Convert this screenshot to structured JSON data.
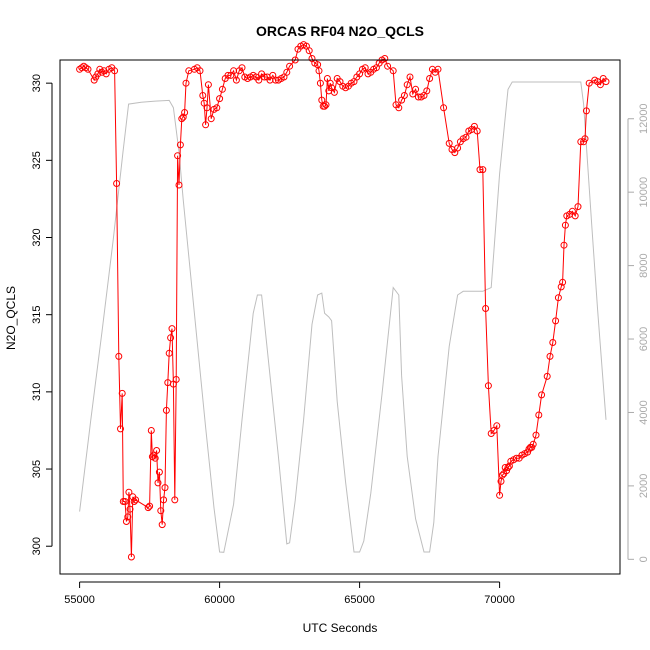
{
  "chart_data": {
    "type": "line",
    "title": "ORCAS RF04 N2O_QCLS",
    "xlabel": "UTC Seconds",
    "ylabel": "N2O_QCLS",
    "xlim": [
      54300,
      74300
    ],
    "ylim": [
      298.2,
      331.5
    ],
    "y2lim": [
      -400,
      13600
    ],
    "xticks": [
      55000,
      60000,
      65000,
      70000
    ],
    "yticks": [
      300,
      305,
      310,
      315,
      320,
      325,
      330
    ],
    "y2ticks": [
      0,
      2000,
      4000,
      6000,
      8000,
      10000,
      12000
    ],
    "x_tick_labels": [
      "55000",
      "60000",
      "65000",
      "70000"
    ],
    "y_tick_labels": [
      "300",
      "305",
      "310",
      "315",
      "320",
      "325",
      "330"
    ],
    "y2_tick_labels": [
      "0",
      "2000",
      "4000",
      "6000",
      "8000",
      "10000",
      "12000"
    ],
    "grid": false,
    "colors": {
      "n2o": "#ff0000",
      "altitude": "#bebebe",
      "axis": "#000000",
      "right_axis": "#aaaaaa"
    },
    "series": [
      {
        "axis": "left",
        "style": "line+open-circles",
        "color": "#ff0000",
        "x": [
          55000,
          55080,
          55150,
          55220,
          55300,
          55520,
          55580,
          55650,
          55720,
          55800,
          55870,
          55950,
          56050,
          56150,
          56250,
          56320,
          56400,
          56460,
          56520,
          56560,
          56620,
          56670,
          56720,
          56760,
          56800,
          56850,
          56900,
          56950,
          57000,
          57450,
          57500,
          57560,
          57600,
          57650,
          57700,
          57750,
          57800,
          57850,
          57900,
          57950,
          58000,
          58050,
          58100,
          58150,
          58200,
          58250,
          58300,
          58350,
          58400,
          58450,
          58500,
          58550,
          58600,
          58650,
          58700,
          58750,
          58800,
          58900,
          59100,
          59200,
          59300,
          59400,
          59450,
          59500,
          59550,
          59600,
          59700,
          59800,
          59900,
          60000,
          60100,
          60200,
          60300,
          60400,
          60500,
          60600,
          60700,
          60800,
          60900,
          61000,
          61100,
          61200,
          61300,
          61400,
          61500,
          61600,
          61700,
          61800,
          61900,
          62000,
          62100,
          62200,
          62300,
          62400,
          62500,
          62700,
          62800,
          62900,
          63000,
          63100,
          63200,
          63300,
          63400,
          63500,
          63550,
          63600,
          63650,
          63700,
          63750,
          63800,
          63850,
          63900,
          63950,
          64000,
          64100,
          64200,
          64300,
          64400,
          64500,
          64600,
          64700,
          64800,
          64900,
          65000,
          65100,
          65200,
          65300,
          65400,
          65500,
          65600,
          65700,
          65800,
          65900,
          66000,
          66200,
          66300,
          66400,
          66500,
          66600,
          66700,
          66800,
          66900,
          67000,
          67100,
          67200,
          67300,
          67400,
          67500,
          67600,
          67700,
          67800,
          68000,
          68200,
          68300,
          68400,
          68500,
          68600,
          68700,
          68800,
          68900,
          69000,
          69100,
          69200,
          69300,
          69400,
          69500,
          69600,
          69700,
          69800,
          69900,
          70000,
          70050,
          70100,
          70150,
          70200,
          70250,
          70300,
          70350,
          70400,
          70500,
          70600,
          70700,
          70800,
          70900,
          71000,
          71050,
          71100,
          71150,
          71200,
          71300,
          71400,
          71500,
          71700,
          71800,
          71900,
          72000,
          72100,
          72200,
          72250,
          72300,
          72350,
          72400,
          72500,
          72600,
          72700,
          72800,
          72900,
          73000,
          73050,
          73100,
          73200,
          73400,
          73500,
          73600,
          73700,
          73800
        ],
        "y": [
          330.9,
          331.0,
          331.1,
          331.0,
          330.9,
          330.2,
          330.4,
          330.6,
          330.9,
          330.7,
          330.8,
          330.6,
          330.9,
          331.0,
          330.8,
          323.5,
          312.3,
          307.6,
          309.9,
          302.9,
          302.9,
          301.6,
          301.9,
          303.5,
          302.4,
          299.3,
          303.2,
          302.9,
          303.0,
          302.5,
          302.6,
          307.5,
          305.8,
          305.9,
          305.7,
          306.2,
          304.1,
          304.8,
          302.3,
          301.4,
          303.0,
          303.8,
          308.8,
          310.6,
          312.5,
          313.5,
          314.1,
          310.5,
          303.0,
          310.8,
          325.3,
          323.4,
          326.0,
          327.7,
          327.8,
          328.1,
          330.0,
          330.8,
          330.9,
          331.0,
          330.8,
          329.2,
          328.7,
          327.3,
          328.4,
          329.9,
          327.7,
          328.3,
          328.4,
          329.0,
          329.6,
          330.3,
          330.5,
          330.5,
          330.8,
          330.2,
          330.8,
          331.0,
          330.4,
          330.3,
          330.4,
          330.5,
          330.4,
          330.2,
          330.6,
          330.4,
          330.4,
          330.2,
          330.5,
          330.2,
          330.2,
          330.3,
          330.4,
          330.7,
          331.1,
          331.5,
          332.2,
          332.4,
          332.5,
          332.4,
          332.1,
          331.6,
          331.3,
          331.2,
          330.8,
          330.0,
          328.9,
          328.5,
          328.5,
          328.6,
          330.3,
          329.5,
          330.0,
          329.7,
          329.4,
          330.3,
          330.1,
          329.8,
          329.7,
          329.8,
          330.0,
          330.1,
          330.4,
          330.6,
          330.9,
          331.0,
          330.6,
          330.7,
          330.9,
          331.0,
          331.3,
          331.5,
          331.6,
          331.1,
          330.8,
          328.6,
          328.4,
          328.9,
          329.2,
          329.9,
          330.4,
          329.3,
          329.6,
          329.1,
          329.1,
          329.2,
          329.5,
          330.3,
          330.9,
          330.7,
          330.9,
          328.4,
          326.1,
          325.7,
          325.5,
          325.8,
          326.2,
          326.4,
          326.5,
          326.9,
          327.0,
          327.2,
          326.9,
          324.4,
          324.4,
          315.4,
          310.4,
          307.3,
          307.5,
          307.8,
          303.3,
          304.2,
          304.6,
          304.7,
          305.1,
          304.9,
          305.1,
          305.2,
          305.5,
          305.6,
          305.7,
          305.7,
          305.9,
          306.0,
          306.1,
          306.3,
          306.4,
          306.4,
          306.6,
          307.2,
          308.5,
          309.8,
          311.0,
          312.3,
          313.2,
          314.6,
          316.1,
          316.8,
          317.1,
          319.5,
          320.8,
          321.4,
          321.5,
          321.7,
          321.4,
          322.0,
          326.2,
          326.2,
          326.4,
          328.2,
          330.0,
          330.2,
          330.1,
          329.9,
          330.3,
          330.1
        ]
      },
      {
        "axis": "right",
        "style": "line",
        "color": "#bebebe",
        "x": [
          55000,
          55400,
          55800,
          56200,
          56550,
          56750,
          57200,
          57700,
          58200,
          58350,
          58550,
          58700,
          59100,
          59500,
          59800,
          60000,
          60150,
          60500,
          60800,
          61200,
          61350,
          61500,
          61800,
          62100,
          62400,
          62500,
          62700,
          63000,
          63300,
          63500,
          63650,
          63750,
          63900,
          64000,
          64200,
          64500,
          64800,
          65000,
          65150,
          65400,
          65800,
          66200,
          66400,
          66500,
          66700,
          67000,
          67300,
          67500,
          67650,
          67800,
          68200,
          68500,
          68700,
          69000,
          69400,
          69700,
          70000,
          70300,
          70450,
          70600,
          71000,
          71500,
          72000,
          72500,
          72900,
          73000,
          73300,
          73500,
          73800
        ],
        "y": [
          1300,
          3800,
          6200,
          8700,
          11100,
          12400,
          12450,
          12480,
          12500,
          12300,
          11100,
          9800,
          6700,
          3600,
          1400,
          200,
          190,
          1500,
          3800,
          6700,
          7200,
          7200,
          5000,
          2800,
          420,
          450,
          1600,
          3800,
          6400,
          7200,
          7250,
          6700,
          6600,
          6500,
          4300,
          2100,
          200,
          200,
          500,
          1800,
          4500,
          7400,
          7200,
          5000,
          2800,
          1100,
          200,
          200,
          1000,
          2800,
          5800,
          7200,
          7300,
          7300,
          7300,
          7400,
          10500,
          12800,
          13000,
          13000,
          13000,
          13000,
          13000,
          13000,
          13000,
          12400,
          9000,
          6800,
          3800
        ]
      }
    ]
  }
}
